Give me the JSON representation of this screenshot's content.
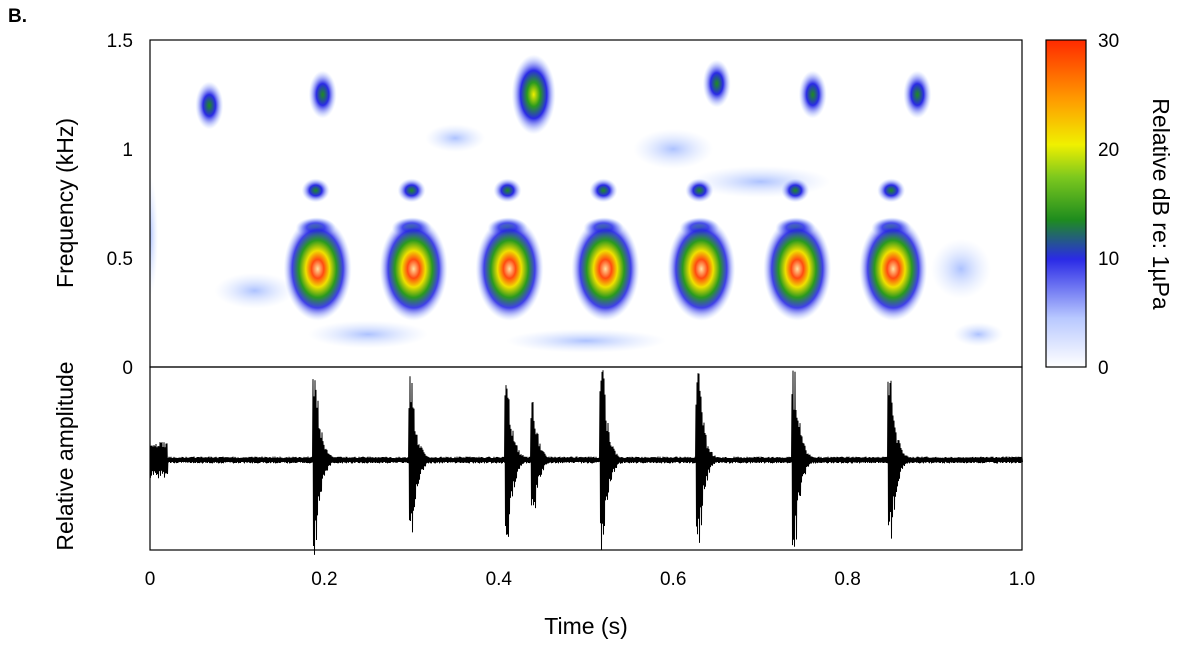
{
  "chart_data": [
    {
      "type": "heatmap",
      "panel_label": "B.",
      "xlabel": "Time (s)",
      "ylabel": "Frequency (kHz)",
      "xlim": [
        0,
        1.0
      ],
      "ylim": [
        0,
        1.5
      ],
      "yticks": [
        "0",
        "0.5",
        "1",
        "1.5"
      ],
      "colorbar": {
        "label": "Relative dB re: 1µPa",
        "range": [
          0,
          30
        ],
        "ticks": [
          "0",
          "10",
          "20",
          "30"
        ],
        "colors": [
          "#ffffff",
          "#2a2ae6",
          "#1e8c1e",
          "#f0f000",
          "#ff3c00"
        ]
      },
      "pulses": [
        {
          "t": 0.19,
          "f": 0.45,
          "peak_db": 30
        },
        {
          "t": 0.3,
          "f": 0.45,
          "peak_db": 30
        },
        {
          "t": 0.41,
          "f": 0.45,
          "peak_db": 30
        },
        {
          "t": 0.52,
          "f": 0.45,
          "peak_db": 30
        },
        {
          "t": 0.63,
          "f": 0.45,
          "peak_db": 30
        },
        {
          "t": 0.74,
          "f": 0.45,
          "peak_db": 30
        },
        {
          "t": 0.85,
          "f": 0.45,
          "peak_db": 30
        }
      ],
      "upper_bands": [
        {
          "t": 0.068,
          "f": 1.2,
          "peak_db": 14
        },
        {
          "t": 0.198,
          "f": 1.25,
          "peak_db": 9
        },
        {
          "t": 0.44,
          "f": 1.25,
          "peak_db": 24
        },
        {
          "t": 0.65,
          "f": 1.3,
          "peak_db": 8
        },
        {
          "t": 0.76,
          "f": 1.25,
          "peak_db": 7
        },
        {
          "t": 0.88,
          "f": 1.25,
          "peak_db": 6
        }
      ]
    },
    {
      "type": "line",
      "ylabel": "Relative amplitude",
      "xticks": [
        "0",
        "0.2",
        "0.4",
        "0.6",
        "0.8",
        "1.0"
      ],
      "xlim": [
        0,
        1.0
      ],
      "ylim": [
        -1,
        1
      ],
      "bursts": [
        {
          "t": 0.19,
          "amp": 1.0
        },
        {
          "t": 0.3,
          "amp": 0.95
        },
        {
          "t": 0.41,
          "amp": 1.0
        },
        {
          "t": 0.44,
          "amp": 0.65
        },
        {
          "t": 0.52,
          "amp": 0.95
        },
        {
          "t": 0.63,
          "amp": 0.95
        },
        {
          "t": 0.74,
          "amp": 0.95
        },
        {
          "t": 0.85,
          "amp": 0.95
        }
      ]
    }
  ]
}
